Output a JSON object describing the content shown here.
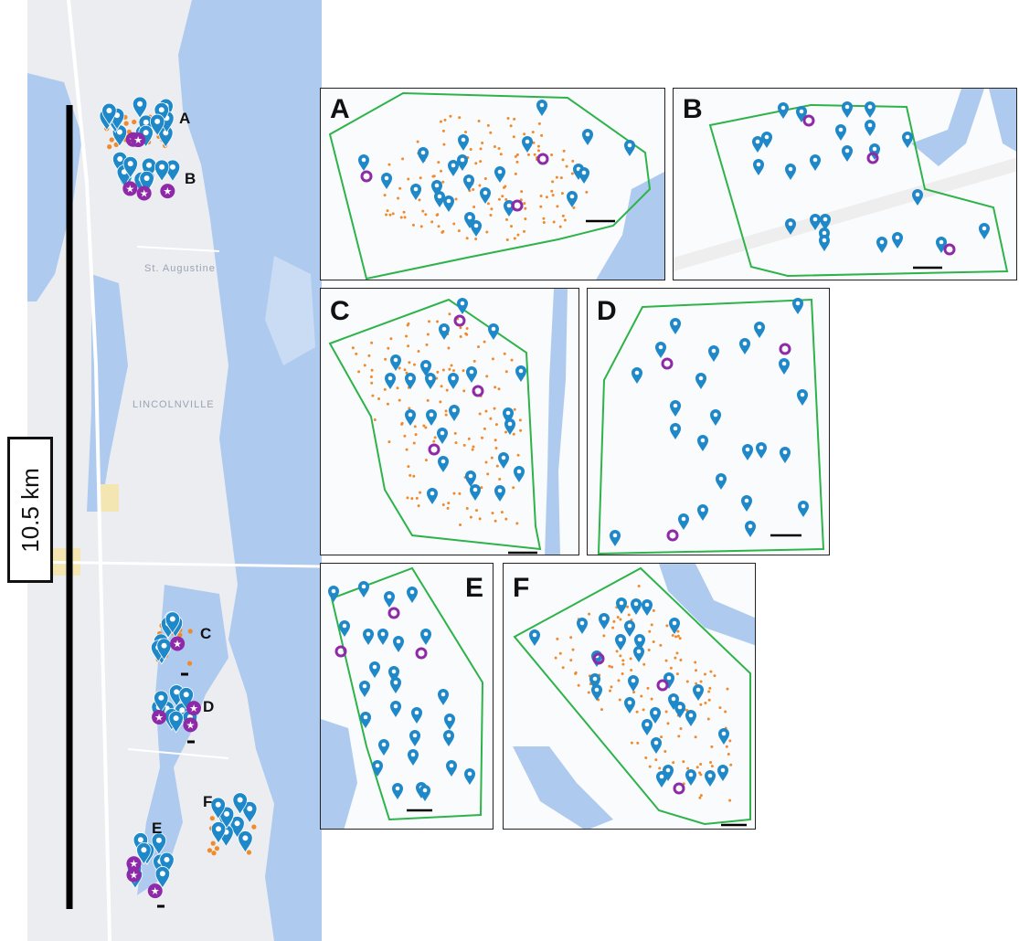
{
  "figure": {
    "scale_label": "10.5 km",
    "colors": {
      "water": "#aecbef",
      "land": "#ebedf1",
      "boundary": "#2db34a",
      "blue_marker": "#1e88c9",
      "purple_marker": "#8e2aa8",
      "orange_dot": "#f08a2a",
      "scale_bar": "#000000"
    },
    "marker_icons": [
      "map-pin-icon",
      "purple-ring-icon",
      "star-icon"
    ]
  },
  "overview": {
    "place_labels": {
      "st_augustine": "St. Augustine",
      "lincolnville": "LINCOLNVILLE"
    },
    "site_labels": {
      "a": "A",
      "b": "B",
      "c": "C",
      "d": "D",
      "e": "E",
      "f": "F"
    }
  },
  "panels": {
    "a": {
      "label": "A"
    },
    "b": {
      "label": "B"
    },
    "c": {
      "label": "C"
    },
    "d": {
      "label": "D"
    },
    "e": {
      "label": "E"
    },
    "f": {
      "label": "F"
    }
  }
}
